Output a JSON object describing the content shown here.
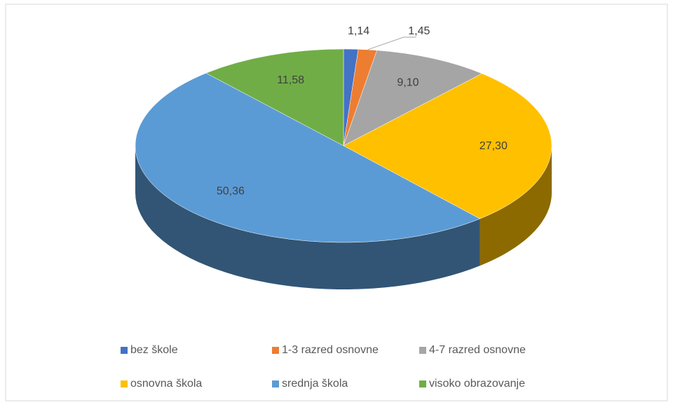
{
  "chart_data": {
    "type": "pie",
    "categories": [
      "bez škole",
      "1-3 razred osnovne",
      "4-7 razred osnovne",
      "osnovna škola",
      "srednja škola",
      "visoko obrazovanje"
    ],
    "values": [
      1.14,
      1.45,
      9.1,
      27.3,
      50.36,
      11.58
    ],
    "value_labels": [
      "1,14",
      "1,45",
      "9,10",
      "27,30",
      "50,36",
      "11,58"
    ],
    "colors": [
      "#4472c4",
      "#ed7d31",
      "#a5a5a5",
      "#ffc000",
      "#5b9bd5",
      "#70ad47"
    ],
    "legend": "bottom"
  }
}
